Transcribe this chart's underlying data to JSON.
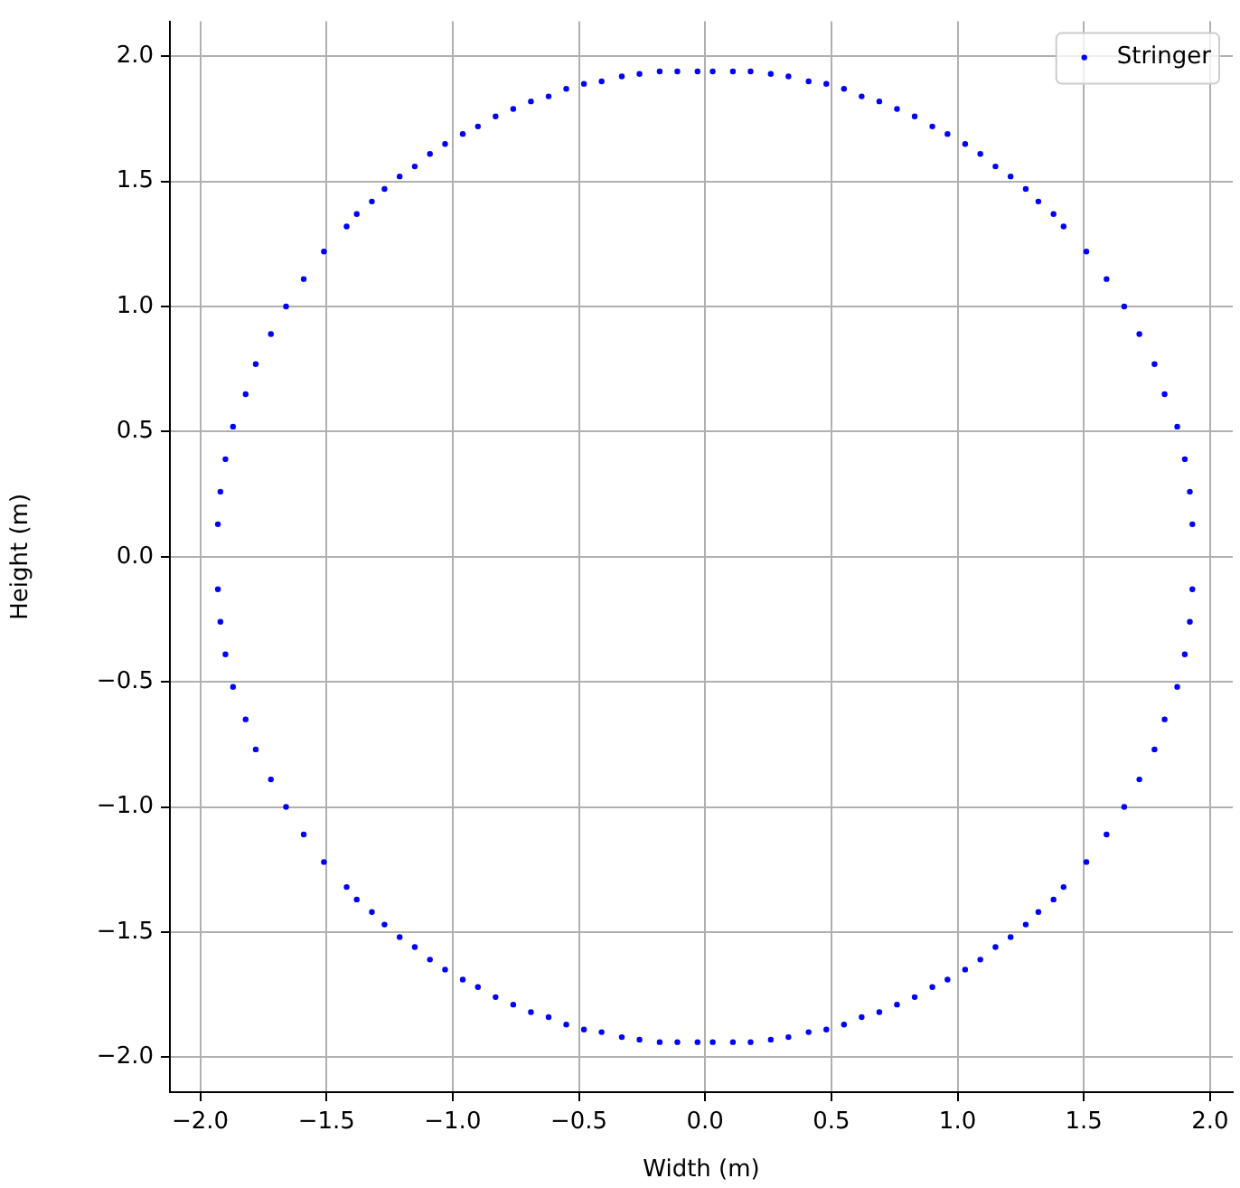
{
  "chart_data": {
    "type": "scatter",
    "xlabel": "Width (m)",
    "ylabel": "Height (m)",
    "xlim": [
      -2.12,
      2.09
    ],
    "ylim": [
      -2.14,
      2.14
    ],
    "xticks": [
      {
        "value": -2,
        "label": "−2.0"
      },
      {
        "value": -1.5,
        "label": "−1.5"
      },
      {
        "value": -1,
        "label": "−1.0"
      },
      {
        "value": -0.5,
        "label": "−0.5"
      },
      {
        "value": 0,
        "label": "0.0"
      },
      {
        "value": 0.5,
        "label": "0.5"
      },
      {
        "value": 1,
        "label": "1.0"
      },
      {
        "value": 1.5,
        "label": "1.5"
      },
      {
        "value": 2,
        "label": "2.0"
      }
    ],
    "yticks": [
      {
        "value": -2,
        "label": "−2.0"
      },
      {
        "value": -1.5,
        "label": "−1.5"
      },
      {
        "value": -1,
        "label": "−1.0"
      },
      {
        "value": -0.5,
        "label": "−0.5"
      },
      {
        "value": 0,
        "label": "0.0"
      },
      {
        "value": 0.5,
        "label": "0.5"
      },
      {
        "value": 1,
        "label": "1.0"
      },
      {
        "value": 1.5,
        "label": "1.5"
      },
      {
        "value": 2,
        "label": "2.0"
      }
    ],
    "grid": true,
    "legend": "top right",
    "marker": "circle",
    "series": [
      {
        "name": "Stringer",
        "color": "#0000ff",
        "x": [
          -1.93,
          -1.92,
          -1.9,
          -1.87,
          -1.82,
          -1.78,
          -1.72,
          -1.66,
          -1.59,
          -1.51,
          -1.42,
          -1.38,
          -1.32,
          -1.27,
          -1.21,
          -1.15,
          -1.09,
          -1.03,
          -0.96,
          -0.9,
          -0.83,
          -0.76,
          -0.69,
          -0.62,
          -0.55,
          -0.48,
          -0.41,
          -0.33,
          -0.26,
          -0.18,
          -0.11,
          -0.03,
          1.93,
          1.92,
          1.9,
          1.87,
          1.82,
          1.78,
          1.72,
          1.66,
          1.59,
          1.51,
          1.42,
          1.38,
          1.32,
          1.27,
          1.21,
          1.15,
          1.09,
          1.03,
          0.96,
          0.9,
          0.83,
          0.76,
          0.69,
          0.62,
          0.55,
          0.48,
          0.41,
          0.33,
          0.26,
          0.18,
          0.11,
          0.03,
          1.93,
          1.92,
          1.9,
          1.87,
          1.82,
          1.78,
          1.72,
          1.66,
          1.59,
          1.51,
          1.42,
          1.38,
          1.32,
          1.27,
          1.21,
          1.15,
          1.09,
          1.03,
          0.96,
          0.9,
          0.83,
          0.76,
          0.69,
          0.62,
          0.55,
          0.48,
          0.41,
          0.33,
          0.26,
          0.18,
          0.11,
          0.03,
          -1.93,
          -1.92,
          -1.9,
          -1.87,
          -1.82,
          -1.78,
          -1.72,
          -1.66,
          -1.59,
          -1.51,
          -1.42,
          -1.38,
          -1.32,
          -1.27,
          -1.21,
          -1.15,
          -1.09,
          -1.03,
          -0.96,
          -0.9,
          -0.83,
          -0.76,
          -0.69,
          -0.62,
          -0.55,
          -0.48,
          -0.41,
          -0.33,
          -0.26,
          -0.18,
          -0.11,
          -0.03
        ],
        "values": [
          0.13,
          0.26,
          0.39,
          0.52,
          0.65,
          0.77,
          0.89,
          1.0,
          1.11,
          1.22,
          1.32,
          1.37,
          1.42,
          1.47,
          1.52,
          1.56,
          1.61,
          1.65,
          1.69,
          1.72,
          1.76,
          1.79,
          1.82,
          1.84,
          1.87,
          1.89,
          1.9,
          1.92,
          1.93,
          1.94,
          1.94,
          1.94,
          0.13,
          0.26,
          0.39,
          0.52,
          0.65,
          0.77,
          0.89,
          1.0,
          1.11,
          1.22,
          1.32,
          1.37,
          1.42,
          1.47,
          1.52,
          1.56,
          1.61,
          1.65,
          1.69,
          1.72,
          1.76,
          1.79,
          1.82,
          1.84,
          1.87,
          1.89,
          1.9,
          1.92,
          1.93,
          1.94,
          1.94,
          1.94,
          -0.13,
          -0.26,
          -0.39,
          -0.52,
          -0.65,
          -0.77,
          -0.89,
          -1.0,
          -1.11,
          -1.22,
          -1.32,
          -1.37,
          -1.42,
          -1.47,
          -1.52,
          -1.56,
          -1.61,
          -1.65,
          -1.69,
          -1.72,
          -1.76,
          -1.79,
          -1.82,
          -1.84,
          -1.87,
          -1.89,
          -1.9,
          -1.92,
          -1.93,
          -1.94,
          -1.94,
          -1.94,
          -0.13,
          -0.26,
          -0.39,
          -0.52,
          -0.65,
          -0.77,
          -0.89,
          -1.0,
          -1.11,
          -1.22,
          -1.32,
          -1.37,
          -1.42,
          -1.47,
          -1.52,
          -1.56,
          -1.61,
          -1.65,
          -1.69,
          -1.72,
          -1.76,
          -1.79,
          -1.82,
          -1.84,
          -1.87,
          -1.89,
          -1.9,
          -1.92,
          -1.93,
          -1.94,
          -1.94,
          -1.94
        ]
      }
    ]
  }
}
